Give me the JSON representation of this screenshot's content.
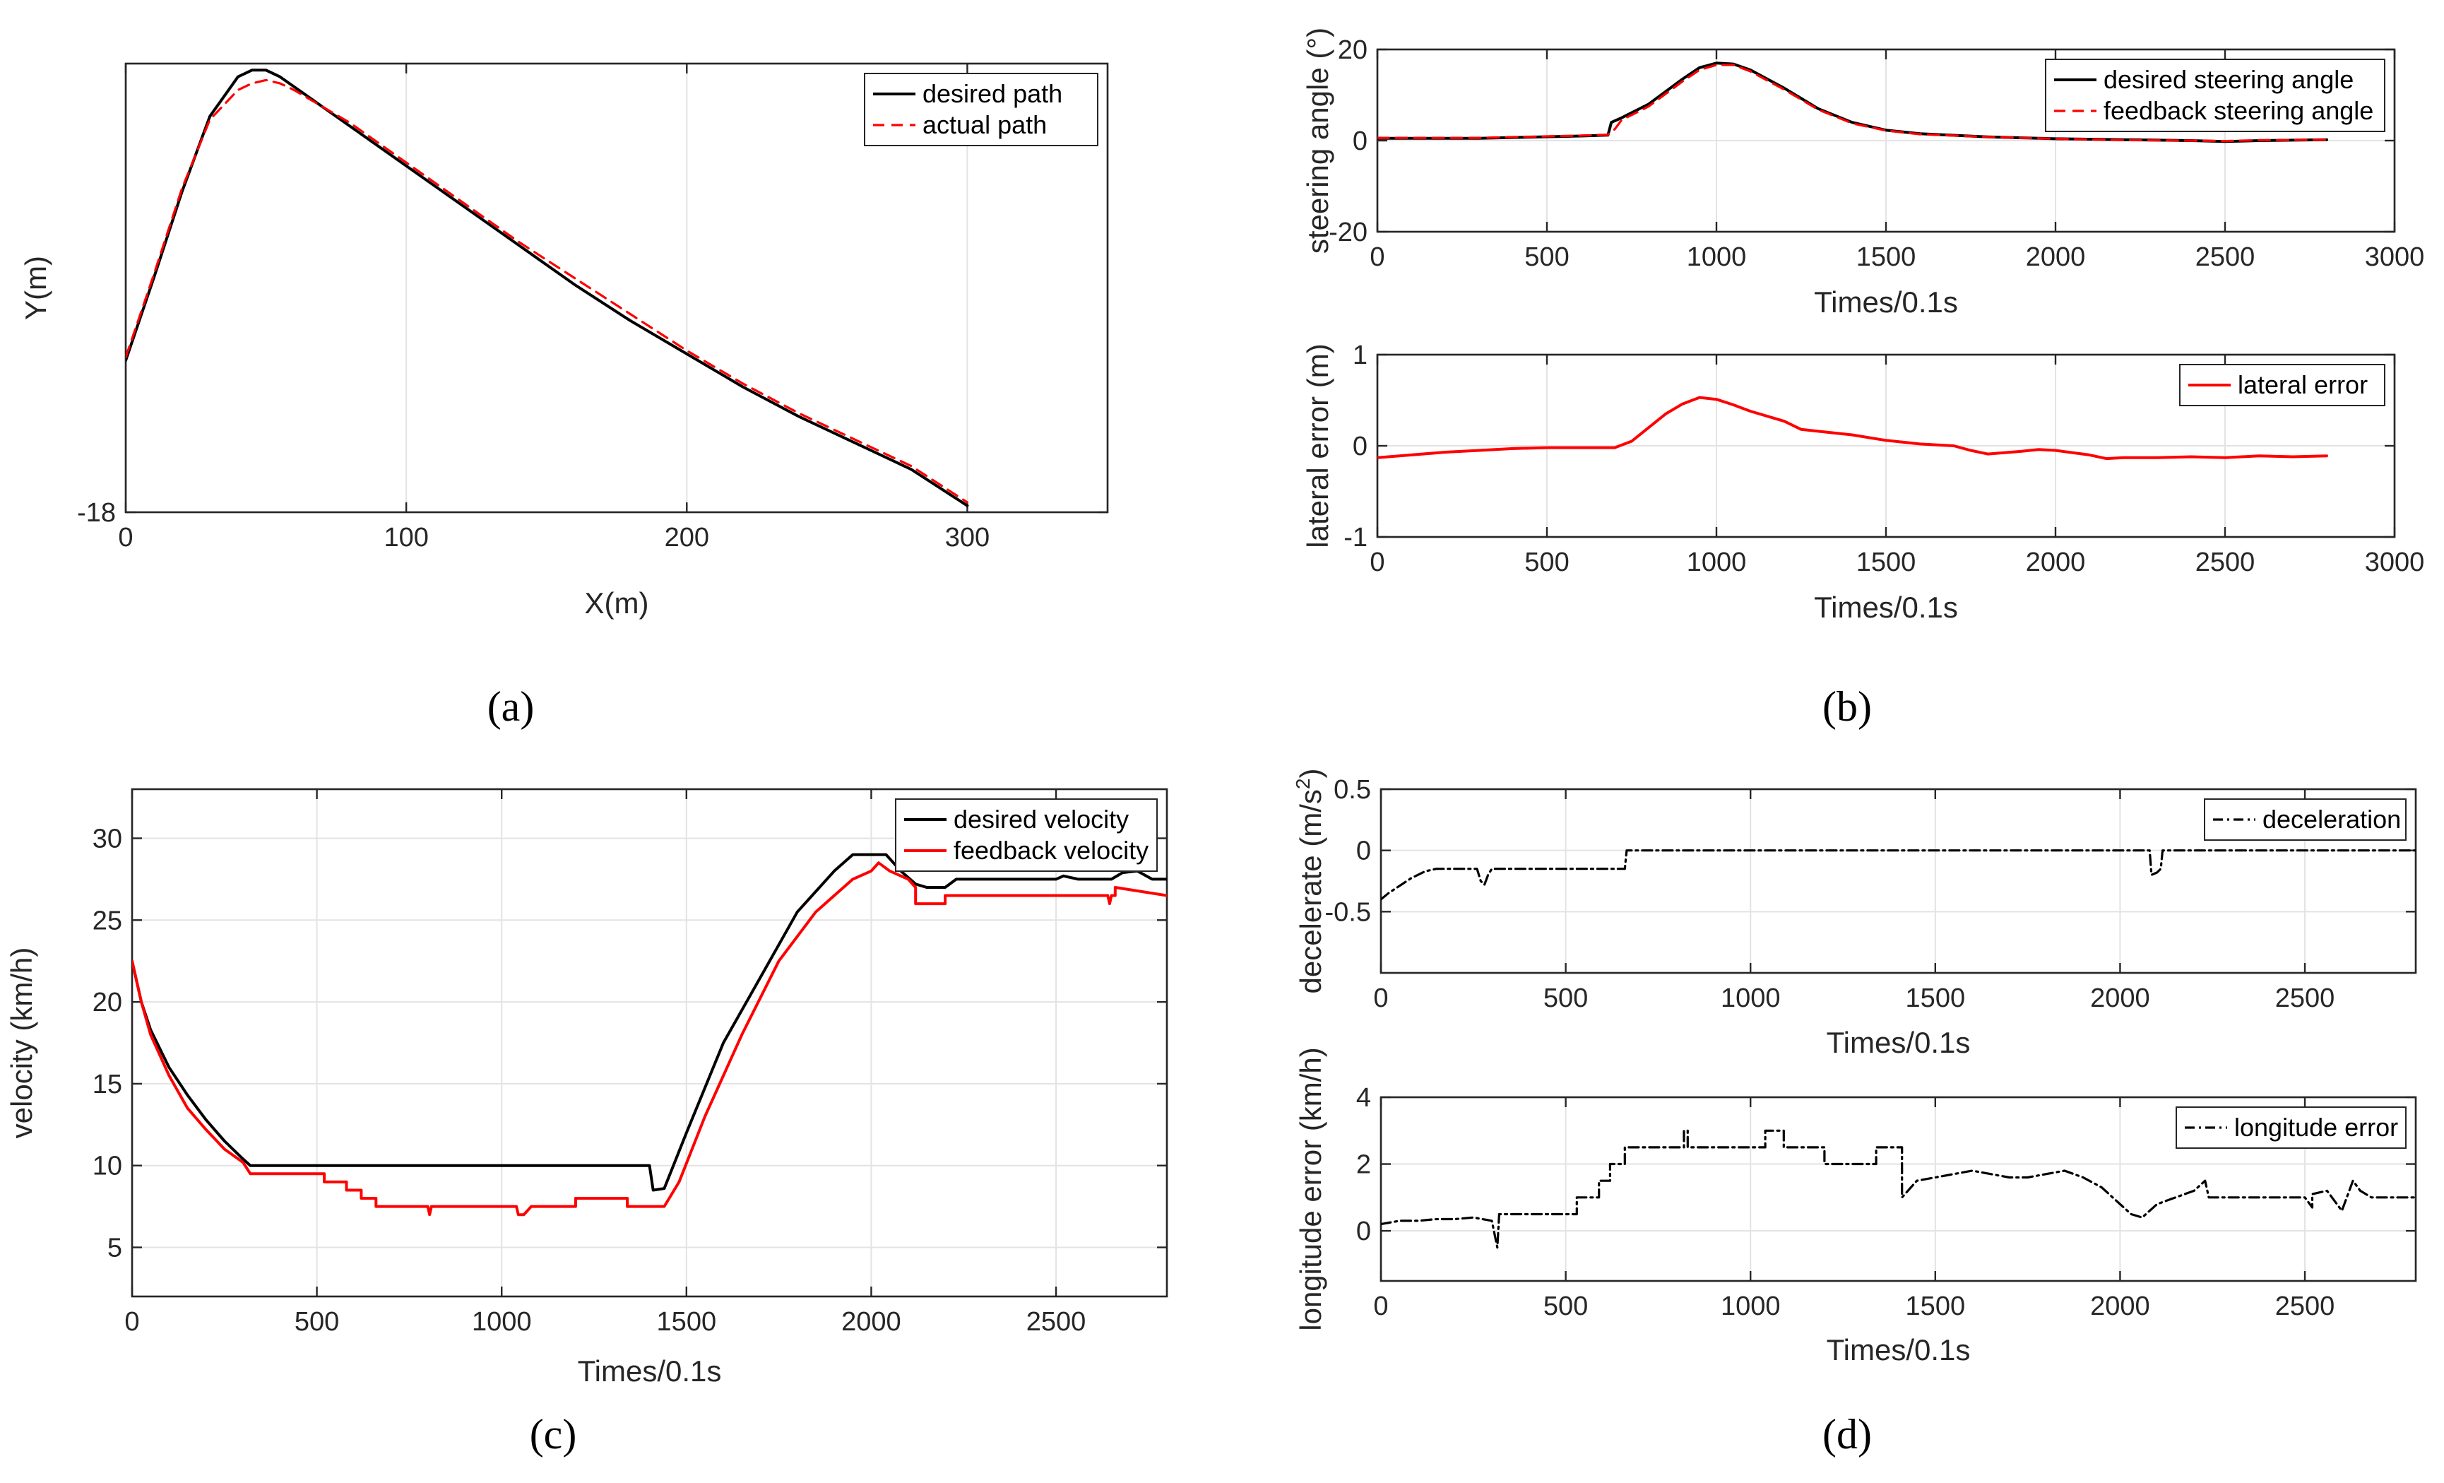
{
  "panel_labels": {
    "a": "(a)",
    "b": "(b)",
    "c": "(c)",
    "d": "(d)"
  },
  "colors": {
    "desired": "#000000",
    "feedback": "#ff0000",
    "axis": "#262626",
    "grid": "#e3e3e3"
  },
  "chart_data": [
    {
      "id": "a",
      "type": "line",
      "title": "",
      "xlabel": "X(m)",
      "ylabel": "Y(m)",
      "xlim": [
        0,
        350
      ],
      "ylim": [
        -18,
        118
      ],
      "xticks": [
        0,
        100,
        200,
        300
      ],
      "yticks": [
        -18
      ],
      "legend": "top-right",
      "series": [
        {
          "name": "desired path",
          "style": "solid",
          "color": "#000000",
          "x": [
            0,
            10,
            20,
            30,
            40,
            45,
            50,
            55,
            60,
            70,
            80,
            100,
            120,
            140,
            160,
            180,
            200,
            220,
            240,
            260,
            280,
            300
          ],
          "y": [
            28,
            53,
            79,
            102,
            114,
            116,
            116,
            114,
            111,
            105,
            99,
            87,
            75,
            63,
            51,
            40,
            30,
            20,
            11,
            3,
            -5,
            -16
          ]
        },
        {
          "name": "actual path",
          "style": "dashed",
          "color": "#ff0000",
          "x": [
            0,
            10,
            20,
            30,
            40,
            45,
            50,
            55,
            60,
            70,
            80,
            100,
            120,
            140,
            160,
            180,
            200,
            220,
            240,
            260,
            280,
            300
          ],
          "y": [
            29,
            54,
            80,
            101,
            110,
            112,
            113,
            112,
            110,
            105,
            100,
            88,
            76,
            64,
            53,
            42,
            31,
            21,
            12,
            4,
            -4,
            -15
          ]
        }
      ]
    },
    {
      "id": "b1",
      "type": "line",
      "title": "",
      "xlabel": "Times/0.1s",
      "ylabel": "steering angle (°)",
      "xlim": [
        0,
        3000
      ],
      "ylim": [
        -20,
        20
      ],
      "xticks": [
        0,
        500,
        1000,
        1500,
        2000,
        2500,
        3000
      ],
      "yticks": [
        -20,
        0,
        20
      ],
      "legend": "top-right",
      "series": [
        {
          "name": "desired steering angle",
          "style": "solid",
          "color": "#000000",
          "x": [
            0,
            300,
            600,
            680,
            690,
            720,
            800,
            900,
            950,
            1000,
            1050,
            1100,
            1200,
            1300,
            1400,
            1500,
            1600,
            1800,
            2000,
            2200,
            2400,
            2500,
            2600,
            2800
          ],
          "y": [
            0.5,
            0.5,
            1,
            1.2,
            4,
            5,
            8,
            13.5,
            16,
            17,
            16.8,
            15.5,
            11.5,
            7,
            4,
            2.3,
            1.5,
            0.8,
            0.4,
            0.2,
            0,
            -0.2,
            0,
            0.2
          ]
        },
        {
          "name": "feedback steering angle",
          "style": "dashed",
          "color": "#ff0000",
          "x": [
            0,
            300,
            600,
            680,
            700,
            720,
            800,
            900,
            950,
            1000,
            1050,
            1100,
            1200,
            1300,
            1400,
            1500,
            1600,
            1800,
            2000,
            2200,
            2400,
            2500,
            2600,
            2800
          ],
          "y": [
            0.6,
            0.6,
            1.1,
            1.3,
            2.5,
            4.5,
            7.5,
            13,
            15.5,
            16.6,
            16.6,
            15.2,
            11.2,
            6.8,
            3.8,
            2.2,
            1.4,
            0.8,
            0.4,
            0.1,
            0,
            -0.1,
            0.1,
            0.2
          ]
        }
      ]
    },
    {
      "id": "b2",
      "type": "line",
      "title": "",
      "xlabel": "Times/0.1s",
      "ylabel": "lateral error (m)",
      "xlim": [
        0,
        3000
      ],
      "ylim": [
        -1,
        1
      ],
      "xticks": [
        0,
        500,
        1000,
        1500,
        2000,
        2500,
        3000
      ],
      "yticks": [
        -1,
        0,
        1
      ],
      "legend": "top-right",
      "series": [
        {
          "name": "lateral error",
          "style": "solid",
          "color": "#ff0000",
          "x": [
            0,
            100,
            200,
            300,
            400,
            500,
            600,
            700,
            750,
            800,
            850,
            900,
            950,
            1000,
            1050,
            1100,
            1200,
            1250,
            1300,
            1400,
            1500,
            1600,
            1700,
            1750,
            1800,
            1900,
            1950,
            2000,
            2100,
            2150,
            2200,
            2300,
            2400,
            2500,
            2600,
            2700,
            2800
          ],
          "y": [
            -0.13,
            -0.1,
            -0.07,
            -0.05,
            -0.03,
            -0.02,
            -0.02,
            -0.02,
            0.05,
            0.2,
            0.35,
            0.46,
            0.53,
            0.51,
            0.45,
            0.38,
            0.27,
            0.18,
            0.16,
            0.12,
            0.06,
            0.02,
            0,
            -0.05,
            -0.09,
            -0.06,
            -0.04,
            -0.05,
            -0.1,
            -0.14,
            -0.13,
            -0.13,
            -0.12,
            -0.13,
            -0.11,
            -0.12,
            -0.11
          ]
        }
      ]
    },
    {
      "id": "c",
      "type": "line",
      "title": "",
      "xlabel": "Times/0.1s",
      "ylabel": "velocity (km/h)",
      "xlim": [
        0,
        2800
      ],
      "ylim": [
        2,
        33
      ],
      "xticks": [
        0,
        500,
        1000,
        1500,
        2000,
        2500
      ],
      "yticks": [
        5,
        10,
        15,
        20,
        25,
        30
      ],
      "legend": "top-right",
      "series": [
        {
          "name": "desired velocity",
          "style": "solid",
          "color": "#000000",
          "x": [
            0,
            25,
            50,
            100,
            150,
            200,
            250,
            300,
            320,
            1400,
            1410,
            1440,
            1500,
            1600,
            1700,
            1800,
            1900,
            1950,
            1990,
            2040,
            2080,
            2120,
            2150,
            2200,
            2230,
            2500,
            2520,
            2560,
            2600,
            2650,
            2680,
            2720,
            2760,
            2800
          ],
          "y": [
            22.5,
            20,
            18.3,
            16,
            14.3,
            12.8,
            11.5,
            10.4,
            10,
            10,
            8.5,
            8.6,
            12,
            17.5,
            21.5,
            25.5,
            28,
            29,
            29,
            29,
            28,
            27.2,
            27,
            27,
            27.5,
            27.5,
            27.7,
            27.5,
            27.5,
            27.5,
            27.9,
            28,
            27.5,
            27.5
          ]
        },
        {
          "name": "feedback velocity",
          "style": "solid",
          "color": "#ff0000",
          "x": [
            0,
            25,
            50,
            100,
            150,
            200,
            250,
            300,
            320,
            520,
            520,
            580,
            580,
            620,
            620,
            660,
            660,
            800,
            805,
            810,
            1040,
            1045,
            1060,
            1080,
            1200,
            1200,
            1340,
            1340,
            1440,
            1480,
            1550,
            1650,
            1750,
            1850,
            1950,
            2000,
            2020,
            2050,
            2100,
            2120,
            2120,
            2200,
            2200,
            2500,
            2640,
            2645,
            2650,
            2660,
            2660,
            2800
          ],
          "y": [
            22.5,
            20,
            18,
            15.5,
            13.5,
            12.2,
            11,
            10.2,
            9.5,
            9.5,
            9,
            9,
            8.5,
            8.5,
            8,
            8,
            7.5,
            7.5,
            7,
            7.5,
            7.5,
            7,
            7,
            7.5,
            7.5,
            8,
            8,
            7.5,
            7.5,
            9,
            13,
            18,
            22.5,
            25.5,
            27.5,
            28,
            28.5,
            28,
            27.5,
            27,
            26,
            26,
            26.5,
            26.5,
            26.5,
            26,
            26.5,
            26.5,
            27,
            26.5
          ]
        }
      ]
    },
    {
      "id": "d1",
      "type": "line",
      "title": "",
      "xlabel": "Times/0.1s",
      "ylabel": "decelerate (m/s",
      "ylabel_sup": "2",
      "ylabel_end": ")",
      "xlim": [
        0,
        2800
      ],
      "ylim": [
        -1,
        0.5
      ],
      "xticks": [
        0,
        500,
        1000,
        1500,
        2000,
        2500
      ],
      "yticks": [
        -0.5,
        0,
        0.5
      ],
      "legend": "top-right",
      "series": [
        {
          "name": "deceleration",
          "style": "dashdot",
          "color": "#000000",
          "x": [
            0,
            20,
            40,
            60,
            80,
            100,
            120,
            150,
            260,
            270,
            280,
            290,
            300,
            320,
            660,
            665,
            2080,
            2085,
            2100,
            2110,
            2115,
            2800
          ],
          "y": [
            -0.4,
            -0.35,
            -0.31,
            -0.27,
            -0.23,
            -0.2,
            -0.17,
            -0.15,
            -0.15,
            -0.25,
            -0.28,
            -0.2,
            -0.15,
            -0.15,
            -0.15,
            0,
            0,
            -0.2,
            -0.18,
            -0.15,
            0,
            0
          ]
        }
      ]
    },
    {
      "id": "d2",
      "type": "line",
      "title": "",
      "xlabel": "Times/0.1s",
      "ylabel": "longitude error (km/h)",
      "xlim": [
        0,
        2800
      ],
      "ylim": [
        -1.5,
        4
      ],
      "xticks": [
        0,
        500,
        1000,
        1500,
        2000,
        2500
      ],
      "yticks": [
        0,
        2,
        4
      ],
      "legend": "top-right",
      "series": [
        {
          "name": "longitude error",
          "style": "dashdot",
          "color": "#000000",
          "x": [
            0,
            50,
            100,
            150,
            200,
            250,
            300,
            315,
            320,
            325,
            530,
            530,
            590,
            590,
            620,
            620,
            660,
            660,
            820,
            820,
            830,
            830,
            1040,
            1040,
            1090,
            1090,
            1200,
            1200,
            1340,
            1340,
            1410,
            1410,
            1450,
            1500,
            1550,
            1600,
            1650,
            1700,
            1750,
            1800,
            1850,
            1900,
            1950,
            2000,
            2030,
            2060,
            2100,
            2150,
            2200,
            2230,
            2240,
            2500,
            2520,
            2520,
            2560,
            2600,
            2630,
            2650,
            2680,
            2700,
            2800
          ],
          "y": [
            0.2,
            0.3,
            0.3,
            0.35,
            0.35,
            0.4,
            0.3,
            -0.5,
            0.5,
            0.5,
            0.5,
            1,
            1,
            1.5,
            1.5,
            2,
            2,
            2.5,
            2.5,
            3,
            3,
            2.5,
            2.5,
            3,
            3,
            2.5,
            2.5,
            2,
            2,
            2.5,
            2.5,
            1,
            1.5,
            1.6,
            1.7,
            1.8,
            1.7,
            1.6,
            1.6,
            1.7,
            1.8,
            1.6,
            1.3,
            0.8,
            0.5,
            0.4,
            0.8,
            1,
            1.2,
            1.5,
            1,
            1,
            0.7,
            1.1,
            1.2,
            0.6,
            1.5,
            1.2,
            1,
            1,
            1
          ]
        }
      ]
    }
  ]
}
